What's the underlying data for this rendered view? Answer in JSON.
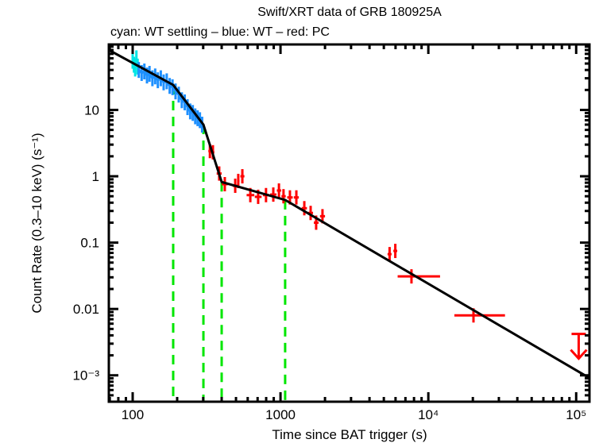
{
  "chart_data": {
    "type": "scatter",
    "title": "Swift/XRT data of GRB 180925A",
    "subtitle": "cyan: WT settling – blue: WT – red: PC",
    "xlabel": "Time since BAT trigger (s)",
    "ylabel": "Count Rate (0.3–10 keV) (s⁻¹)",
    "xscale": "log",
    "yscale": "log",
    "xlim": [
      69,
      123000
    ],
    "ylim": [
      0.0004,
      97
    ],
    "x_ticks": [
      {
        "value": 100,
        "label": "100"
      },
      {
        "value": 1000,
        "label": "1000"
      },
      {
        "value": 10000,
        "label": "10⁴"
      },
      {
        "value": 100000,
        "label": "10⁵"
      }
    ],
    "y_ticks": [
      {
        "value": 10,
        "label": "10"
      },
      {
        "value": 1,
        "label": "1"
      },
      {
        "value": 0.1,
        "label": "0.1"
      },
      {
        "value": 0.01,
        "label": "0.01"
      },
      {
        "value": 0.001,
        "label": "10⁻³"
      }
    ],
    "grid": false,
    "colors": {
      "wt_settling": "#00e5e5",
      "wt": "#1e90ff",
      "pc": "#ff0000",
      "fit": "#000000",
      "breaks": "#00e600"
    },
    "series": [
      {
        "name": "WT settling",
        "color_key": "wt_settling",
        "points": [
          {
            "t": 100,
            "r": 55
          },
          {
            "t": 102,
            "r": 48
          },
          {
            "t": 104,
            "r": 42
          },
          {
            "t": 106,
            "r": 60
          },
          {
            "t": 108,
            "r": 45
          }
        ]
      },
      {
        "name": "WT",
        "color_key": "wt",
        "points": [
          {
            "t": 110,
            "r": 40
          },
          {
            "t": 115,
            "r": 36
          },
          {
            "t": 120,
            "r": 38
          },
          {
            "t": 125,
            "r": 33
          },
          {
            "t": 130,
            "r": 35
          },
          {
            "t": 136,
            "r": 30
          },
          {
            "t": 142,
            "r": 32
          },
          {
            "t": 148,
            "r": 28
          },
          {
            "t": 155,
            "r": 30
          },
          {
            "t": 162,
            "r": 26
          },
          {
            "t": 170,
            "r": 27
          },
          {
            "t": 178,
            "r": 23
          },
          {
            "t": 186,
            "r": 22
          },
          {
            "t": 195,
            "r": 19
          },
          {
            "t": 205,
            "r": 17
          },
          {
            "t": 215,
            "r": 14
          },
          {
            "t": 225,
            "r": 13
          },
          {
            "t": 235,
            "r": 11
          },
          {
            "t": 245,
            "r": 9.5
          },
          {
            "t": 255,
            "r": 9
          },
          {
            "t": 265,
            "r": 8
          },
          {
            "t": 275,
            "r": 7.5
          },
          {
            "t": 285,
            "r": 7
          },
          {
            "t": 295,
            "r": 6
          }
        ]
      },
      {
        "name": "PC",
        "color_key": "pc",
        "points": [
          {
            "t": 333,
            "r": 2.4,
            "t_lo": 325,
            "t_hi": 341
          },
          {
            "t": 349,
            "r": 2.3,
            "t_lo": 341,
            "t_hi": 357
          },
          {
            "t": 385,
            "r": 1.1,
            "t_lo": 370,
            "t_hi": 400
          },
          {
            "t": 420,
            "r": 0.76,
            "t_lo": 400,
            "t_hi": 440
          },
          {
            "t": 494,
            "r": 0.72,
            "t_lo": 475,
            "t_hi": 512
          },
          {
            "t": 518,
            "r": 0.85,
            "t_lo": 510,
            "t_hi": 528
          },
          {
            "t": 552,
            "r": 1.0,
            "t_lo": 535,
            "t_hi": 570
          },
          {
            "t": 625,
            "r": 0.52,
            "t_lo": 590,
            "t_hi": 665
          },
          {
            "t": 706,
            "r": 0.49,
            "t_lo": 670,
            "t_hi": 745
          },
          {
            "t": 798,
            "r": 0.52,
            "t_lo": 760,
            "t_hi": 840
          },
          {
            "t": 894,
            "r": 0.53,
            "t_lo": 850,
            "t_hi": 940
          },
          {
            "t": 976,
            "r": 0.61,
            "t_lo": 945,
            "t_hi": 1010
          },
          {
            "t": 1048,
            "r": 0.5,
            "t_lo": 1015,
            "t_hi": 1085
          },
          {
            "t": 1158,
            "r": 0.48,
            "t_lo": 1110,
            "t_hi": 1210
          },
          {
            "t": 1280,
            "r": 0.48,
            "t_lo": 1230,
            "t_hi": 1330
          },
          {
            "t": 1449,
            "r": 0.33,
            "t_lo": 1390,
            "t_hi": 1510
          },
          {
            "t": 1599,
            "r": 0.28,
            "t_lo": 1540,
            "t_hi": 1660
          },
          {
            "t": 1742,
            "r": 0.2,
            "t_lo": 1680,
            "t_hi": 1810
          },
          {
            "t": 1923,
            "r": 0.25,
            "t_lo": 1850,
            "t_hi": 2000
          },
          {
            "t": 5470,
            "r": 0.067,
            "t_lo": 5300,
            "t_hi": 5640
          },
          {
            "t": 5978,
            "r": 0.075,
            "t_lo": 5800,
            "t_hi": 6160
          },
          {
            "t": 7690,
            "r": 0.031,
            "t_lo": 6200,
            "t_hi": 12000
          },
          {
            "t": 20200,
            "r": 0.008,
            "t_lo": 15000,
            "t_hi": 33000
          }
        ],
        "upper_limits": [
          {
            "t": 104000,
            "r": 0.0042
          }
        ]
      }
    ],
    "fit": {
      "name": "Broken power-law fit",
      "points": [
        {
          "t": 69,
          "r": 80
        },
        {
          "t": 188,
          "r": 23.8
        },
        {
          "t": 301,
          "r": 6.0
        },
        {
          "t": 400,
          "r": 0.82
        },
        {
          "t": 1075,
          "r": 0.44
        },
        {
          "t": 123000,
          "r": 0.00091
        }
      ]
    },
    "break_times": [
      188,
      301,
      400,
      1075
    ]
  }
}
